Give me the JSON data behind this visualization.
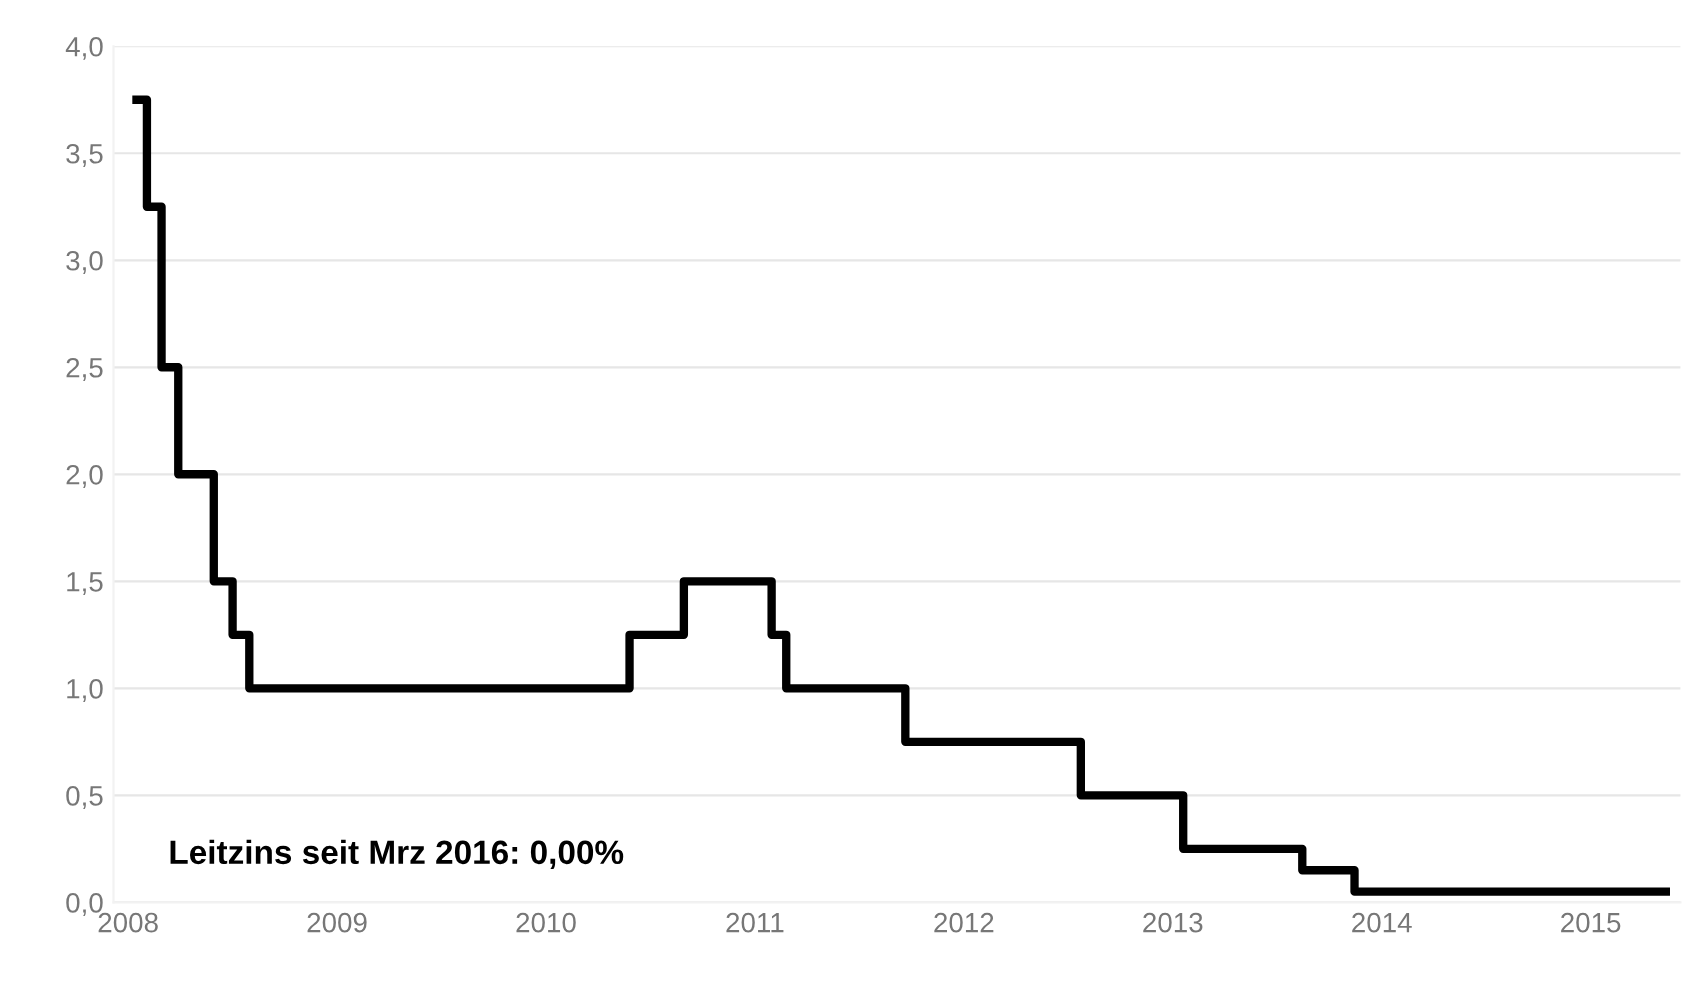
{
  "chart_data": {
    "type": "step",
    "x": [
      2008.04,
      2008.09,
      2008.16,
      2008.24,
      2008.41,
      2008.5,
      2008.58,
      2010.4,
      2010.66,
      2011.08,
      2011.15,
      2011.72,
      2012.56,
      2013.05,
      2013.62,
      2013.87,
      2015.36
    ],
    "series": [
      {
        "color": "#000000",
        "values": [
          3.75,
          3.25,
          2.5,
          2.0,
          1.5,
          1.25,
          1.0,
          1.25,
          1.5,
          1.25,
          1.0,
          0.75,
          0.5,
          0.25,
          0.15,
          0.05,
          0.05
        ]
      }
    ],
    "xlim": [
      2007.93,
      2015.43
    ],
    "xticks": [
      2008,
      2009,
      2010,
      2011,
      2012,
      2013,
      2014,
      2015
    ],
    "ylim": [
      0,
      4
    ],
    "yticks": [
      {
        "value": 0,
        "label": "0,0"
      },
      {
        "value": 0.5,
        "label": "0,5"
      },
      {
        "value": 1,
        "label": "1,0"
      },
      {
        "value": 1.5,
        "label": "1,5"
      },
      {
        "value": 2,
        "label": "2,0"
      },
      {
        "value": 2.5,
        "label": "2,5"
      },
      {
        "value": 3,
        "label": "3,0"
      },
      {
        "value": 3.5,
        "label": "3,5"
      },
      {
        "value": 4,
        "label": "4,0"
      }
    ],
    "grid": "y",
    "legend": false,
    "annotations": [
      "Leitzins seit Mrz 2016: 0,00%"
    ]
  }
}
